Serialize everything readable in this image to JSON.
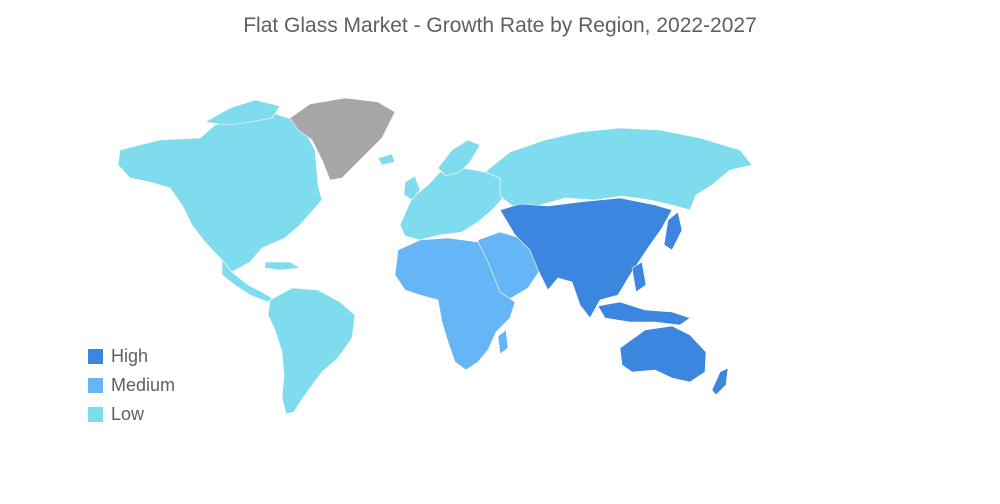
{
  "title": "Flat Glass Market - Growth Rate by Region, 2022-2027",
  "colors": {
    "high": "#3c86e0",
    "medium": "#66b5f7",
    "low": "#7fdcee",
    "no_data": "#a6a6a6"
  },
  "legend": [
    {
      "label": "High",
      "level": "high"
    },
    {
      "label": "Medium",
      "level": "medium"
    },
    {
      "label": "Low",
      "level": "low"
    }
  ],
  "regions": [
    {
      "name": "North America",
      "level": "low"
    },
    {
      "name": "South America",
      "level": "low"
    },
    {
      "name": "Europe",
      "level": "low"
    },
    {
      "name": "Russia",
      "level": "low"
    },
    {
      "name": "Greenland",
      "level": "no_data"
    },
    {
      "name": "Africa",
      "level": "medium"
    },
    {
      "name": "Middle East",
      "level": "medium"
    },
    {
      "name": "Asia-Pacific",
      "level": "high"
    },
    {
      "name": "Australia",
      "level": "high"
    }
  ]
}
